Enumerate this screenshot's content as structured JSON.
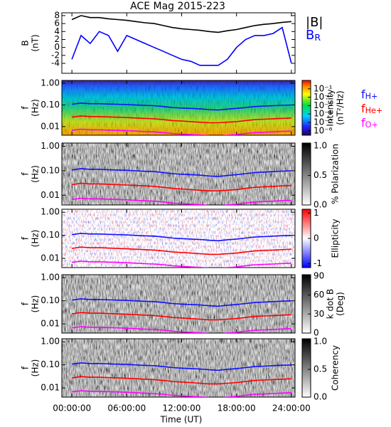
{
  "chart_data": {
    "type": "spectrogram",
    "title": "ACE Mag 2015-223",
    "xlabel": "Time (UT)",
    "xlim": [
      -1.1,
      24.4
    ],
    "xticks": [
      {
        "value": 0,
        "label": "00:00:00"
      },
      {
        "value": 6,
        "label": "06:00:00"
      },
      {
        "value": 12,
        "label": "12:00:00"
      },
      {
        "value": 18,
        "label": "18:00:00"
      },
      {
        "value": 24,
        "label": "24:00:00"
      }
    ],
    "x": [
      0,
      1,
      2,
      3,
      4,
      5,
      6,
      7,
      8,
      9,
      10,
      11,
      12,
      13,
      14,
      15,
      16,
      17,
      18,
      19,
      20,
      21,
      22,
      23,
      24
    ],
    "field": {
      "ylabel": [
        "B",
        "(nT)"
      ],
      "ylim": [
        -6.5,
        8.7
      ],
      "yticks": [
        -4,
        -2,
        0,
        2,
        4,
        6,
        8
      ],
      "series": [
        {
          "name": "|B|",
          "color": "#000000",
          "values": [
            7,
            8,
            7.5,
            7.5,
            7.2,
            7,
            6.8,
            6.5,
            6.2,
            6,
            5.5,
            5,
            4.7,
            4.5,
            4.3,
            4,
            3.8,
            4.2,
            4.5,
            5,
            5.5,
            5.8,
            6,
            6.3,
            6.5
          ]
        },
        {
          "name": "B",
          "sub": "R",
          "color": "#0000ff",
          "values": [
            -3,
            3,
            1,
            4,
            3,
            -1,
            3,
            2,
            1,
            0,
            -1,
            -2,
            -3,
            -3.5,
            -4.5,
            -4.5,
            -4.5,
            -3,
            0,
            2,
            3,
            3,
            3.5,
            5,
            -4
          ]
        }
      ]
    },
    "frequency": {
      "ylabel": [
        "f",
        "(Hz)"
      ],
      "log": true,
      "ylim": [
        0.004,
        1.35
      ],
      "yticks": [
        {
          "value": 1,
          "label": "1.00"
        },
        {
          "value": 0.1,
          "label": "0.10"
        },
        {
          "value": 0.01,
          "label": "0.01"
        }
      ],
      "lines": [
        {
          "name": "f",
          "sub": "H+",
          "color": "#1010ff",
          "values": [
            0.107,
            0.122,
            0.114,
            0.114,
            0.11,
            0.107,
            0.104,
            0.099,
            0.095,
            0.092,
            0.084,
            0.076,
            0.072,
            0.069,
            0.066,
            0.061,
            0.058,
            0.064,
            0.069,
            0.076,
            0.084,
            0.088,
            0.092,
            0.096,
            0.099
          ]
        },
        {
          "name": "f",
          "sub": "He+",
          "color": "#ff0000",
          "values": [
            0.027,
            0.031,
            0.029,
            0.029,
            0.028,
            0.027,
            0.026,
            0.025,
            0.024,
            0.023,
            0.021,
            0.019,
            0.018,
            0.017,
            0.016,
            0.015,
            0.015,
            0.016,
            0.017,
            0.019,
            0.021,
            0.022,
            0.023,
            0.024,
            0.025
          ]
        },
        {
          "name": "f",
          "sub": "O+",
          "color": "#ff00ff",
          "values": [
            0.0067,
            0.0076,
            0.0071,
            0.0071,
            0.0069,
            0.0067,
            0.0065,
            0.0062,
            0.0059,
            0.0057,
            0.0053,
            0.0048,
            0.0045,
            0.0043,
            0.0041,
            0.0038,
            0.0036,
            0.004,
            0.0043,
            0.0048,
            0.0053,
            0.0055,
            0.0057,
            0.006,
            0.0062
          ]
        }
      ]
    },
    "panels": [
      {
        "label": [
          "Intensity",
          "(nT²/Hz)"
        ],
        "colormap": "rainbow",
        "log": true,
        "legend": true,
        "clim": [
          3e-07,
          1
        ],
        "ticks": [
          {
            "value": 0.1,
            "label": "10⁻¹"
          },
          {
            "value": 0.01,
            "label": "10⁻²"
          },
          {
            "value": 0.001,
            "label": "10⁻³"
          },
          {
            "value": 0.0001,
            "label": "10⁻⁴"
          },
          {
            "value": 1e-05,
            "label": "10⁻⁵"
          },
          {
            "value": 1e-06,
            "label": "10⁻⁶"
          }
        ]
      },
      {
        "label": [
          "% Polarization"
        ],
        "colormap": "gray",
        "clim": [
          0,
          1.05
        ],
        "ticks": [
          {
            "value": 1,
            "label": "1.0"
          },
          {
            "value": 0.5,
            "label": "0.5"
          },
          {
            "value": 0,
            "label": "0.0"
          }
        ]
      },
      {
        "label": [
          "Ellipticity"
        ],
        "colormap": "bwr",
        "clim": [
          -1.15,
          1.15
        ],
        "ticks": [
          1,
          0,
          -1
        ]
      },
      {
        "label": [
          "k dot B",
          "(Deg)"
        ],
        "colormap": "gray",
        "clim": [
          0,
          92
        ],
        "ticks": [
          90,
          60,
          30,
          0
        ]
      },
      {
        "label": [
          "Coherency"
        ],
        "colormap": "gray",
        "clim": [
          0,
          1.05
        ],
        "ticks": [
          {
            "value": 1,
            "label": "1.0"
          },
          {
            "value": 0.5,
            "label": "0.5"
          },
          {
            "value": 0,
            "label": "0.0"
          }
        ]
      }
    ]
  }
}
